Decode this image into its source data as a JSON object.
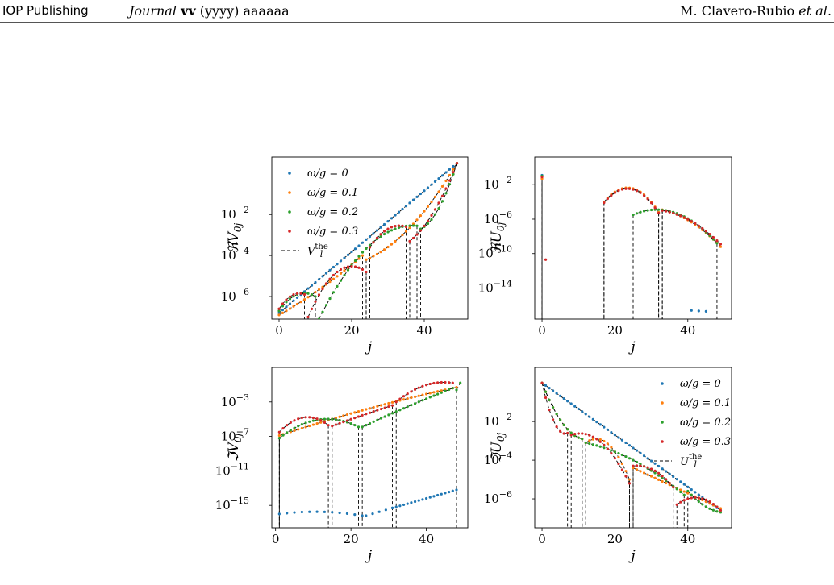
{
  "header": {
    "publisher": "IOP Publishing",
    "journal_name": "Journal",
    "journal_vol": "vv",
    "journal_rest": "(yyyy) aaaaaa",
    "authors": "M. Clavero-Rubio",
    "etal": "et al."
  },
  "colors": {
    "series": [
      "#1f77b4",
      "#ff7f0e",
      "#2ca02c",
      "#d62728"
    ],
    "theory": "#000000"
  },
  "chart_data": [
    {
      "type": "scatter",
      "ylabel": "ℜV0j",
      "xlabel": "j",
      "scale_y": "log",
      "xlim": [
        -2,
        52
      ],
      "ylim_exp": [
        -7.1,
        0.8
      ],
      "xticks": [
        0,
        20,
        40
      ],
      "yticks_exp": [
        -6,
        -4,
        -2
      ],
      "legend_placement": "top-left",
      "legend": [
        "ω/g = 0",
        "ω/g = 0.1",
        "ω/g = 0.2",
        "ω/g = 0.3",
        "V_l^the"
      ],
      "series": [
        {
          "name": "ω/g = 0",
          "segments": [
            {
              "x": [
                0,
                49
              ],
              "log10y": [
                -6.8,
                0.5
              ],
              "curve": 0
            }
          ]
        },
        {
          "name": "ω/g = 0.1",
          "segments": [
            {
              "x": [
                0,
                23
              ],
              "log10y": [
                -6.9,
                -4.0
              ],
              "curve": -0.15,
              "zero_end": true
            },
            {
              "x": [
                24,
                49
              ],
              "log10y": [
                -4.2,
                0.5
              ],
              "curve": -0.7,
              "zero_start": true
            }
          ]
        },
        {
          "name": "ω/g = 0.2",
          "segments": [
            {
              "x": [
                0,
                10
              ],
              "log10y": [
                -6.7,
                -6.0
              ],
              "curve": 0.45,
              "zero_end": true
            },
            {
              "x": [
                11,
                38
              ],
              "log10y": [
                -7.1,
                -2.55
              ],
              "curve": 1.25,
              "zero_start": true,
              "zero_end": true
            },
            {
              "x": [
                39,
                49
              ],
              "log10y": [
                -2.7,
                0.5
              ],
              "curve": -0.6,
              "zero_start": true
            }
          ]
        },
        {
          "name": "ω/g = 0.3",
          "segments": [
            {
              "x": [
                0,
                7
              ],
              "log10y": [
                -6.6,
                -5.9
              ],
              "curve": 0.3,
              "zero_end": true
            },
            {
              "x": [
                8,
                24
              ],
              "log10y": [
                -7.0,
                -4.8
              ],
              "curve": 1.1,
              "zero_start": true,
              "zero_end": true
            },
            {
              "x": [
                25,
                35
              ],
              "log10y": [
                -3.6,
                -2.6
              ],
              "curve": 0.4,
              "zero_start": true,
              "zero_end": true
            },
            {
              "x": [
                36,
                49
              ],
              "log10y": [
                -3.3,
                0.5
              ],
              "curve": -0.5,
              "zero_start": true
            }
          ]
        }
      ]
    },
    {
      "type": "scatter",
      "ylabel": "ℜU0j",
      "xlabel": "j",
      "scale_y": "log",
      "xlim": [
        -2,
        52
      ],
      "ylim_exp": [
        -17.6,
        1.2
      ],
      "xticks": [
        0,
        20,
        40
      ],
      "yticks_exp": [
        -14,
        -10,
        -6,
        -2
      ],
      "series": [
        {
          "name": "ω/g = 0",
          "segments": [
            {
              "x": [
                0,
                0
              ],
              "log10y": [
                -0.9,
                -0.9
              ],
              "curve": 0
            },
            {
              "x": [
                41,
                45
              ],
              "log10y": [
                -16.6,
                -16.7
              ],
              "curve": 0,
              "step": 2
            }
          ]
        },
        {
          "name": "ω/g = 0.1",
          "segments": [
            {
              "x": [
                0,
                0
              ],
              "log10y": [
                -1.3,
                -1.3
              ],
              "curve": 0,
              "zero_start": true
            },
            {
              "x": [
                17,
                32
              ],
              "log10y": [
                -4.0,
                -5.2
              ],
              "curve": 2.2,
              "zero_start": true,
              "zero_end": true
            },
            {
              "x": [
                33,
                49
              ],
              "log10y": [
                -4.9,
                -9.2
              ],
              "curve": 0.7,
              "zero_start": true
            }
          ]
        },
        {
          "name": "ω/g = 0.2",
          "segments": [
            {
              "x": [
                0,
                0
              ],
              "log10y": [
                -1.0,
                -1.0
              ],
              "curve": 0,
              "zero_start": true
            },
            {
              "x": [
                25,
                48
              ],
              "log10y": [
                -5.5,
                -8.8
              ],
              "curve": 1.9,
              "zero_start": true,
              "zero_end": true
            }
          ]
        },
        {
          "name": "ω/g = 0.3",
          "segments": [
            {
              "x": [
                0,
                0
              ],
              "log10y": [
                -1.1,
                -1.1
              ],
              "curve": 0,
              "zero_start": true
            },
            {
              "x": [
                1,
                1
              ],
              "log10y": [
                -10.7,
                -10.7
              ],
              "curve": 0
            },
            {
              "x": [
                17,
                32
              ],
              "log10y": [
                -4.1,
                -5.3
              ],
              "curve": 2.2,
              "zero_start": true,
              "zero_end": true
            },
            {
              "x": [
                33,
                49
              ],
              "log10y": [
                -5.0,
                -8.9
              ],
              "curve": 0.7,
              "zero_start": true
            }
          ]
        }
      ]
    },
    {
      "type": "scatter",
      "ylabel": "ℑV0j",
      "xlabel": "j",
      "scale_y": "log",
      "xlim": [
        -1,
        51
      ],
      "ylim_exp": [
        -17.6,
        1.0
      ],
      "xticks": [
        0,
        20,
        40
      ],
      "yticks_exp": [
        -15,
        -11,
        -7,
        -3
      ],
      "series": [
        {
          "name": "ω/g = 0",
          "segments": [
            {
              "x": [
                1,
                23
              ],
              "log10y": [
                -16.0,
                -16.2
              ],
              "curve": 0.35,
              "step": 2
            },
            {
              "x": [
                24,
                31
              ],
              "log10y": [
                -16.2,
                -15.3
              ],
              "curve": 0,
              "step": 2
            },
            {
              "x": [
                31,
                48
              ],
              "log10y": [
                -15.3,
                -13.2
              ],
              "curve": 0,
              "step": 1
            }
          ]
        },
        {
          "name": "ω/g = 0.1",
          "segments": [
            {
              "x": [
                1,
                48
              ],
              "log10y": [
                -6.9,
                -1.3
              ],
              "curve": 0.3,
              "zero_start": true
            }
          ]
        },
        {
          "name": "ω/g = 0.2",
          "segments": [
            {
              "x": [
                1,
                22
              ],
              "log10y": [
                -7.2,
                -5.9
              ],
              "curve": 1.5,
              "zero_start": true,
              "zero_end": true
            },
            {
              "x": [
                23,
                47
              ],
              "log10y": [
                -5.9,
                -1.4
              ],
              "curve": 0.1,
              "zero_start": true
            },
            {
              "x": [
                48,
                49
              ],
              "log10y": [
                -1.6,
                -0.8
              ],
              "curve": 0,
              "zero_start": true
            }
          ]
        },
        {
          "name": "ω/g = 0.3",
          "segments": [
            {
              "x": [
                1,
                14
              ],
              "log10y": [
                -6.5,
                -5.7
              ],
              "curve": 1.3,
              "zero_start": true,
              "zero_end": true
            },
            {
              "x": [
                15,
                31
              ],
              "log10y": [
                -5.8,
                -3.4
              ],
              "curve": 0.05,
              "zero_start": true,
              "zero_end": true
            },
            {
              "x": [
                32,
                47
              ],
              "log10y": [
                -3.0,
                -0.8
              ],
              "curve": 0.8,
              "zero_start": true
            }
          ]
        }
      ]
    },
    {
      "type": "scatter",
      "ylabel": "ℑU0j",
      "xlabel": "j",
      "scale_y": "log",
      "xlim": [
        -2,
        52
      ],
      "ylim_exp": [
        -7.5,
        0.8
      ],
      "xticks": [
        0,
        20,
        40
      ],
      "yticks_exp": [
        -6,
        -4,
        -2
      ],
      "legend_placement": "top-right",
      "legend": [
        "ω/g = 0",
        "ω/g = 0.1",
        "ω/g = 0.2",
        "ω/g = 0.3",
        "U_l^the"
      ],
      "series": [
        {
          "name": "ω/g = 0",
          "segments": [
            {
              "x": [
                0,
                49
              ],
              "log10y": [
                0.0,
                -6.6
              ],
              "curve": 0
            }
          ]
        },
        {
          "name": "ω/g = 0.1",
          "segments": [
            {
              "x": [
                0,
                11
              ],
              "log10y": [
                0.0,
                -2.9
              ],
              "curve": -0.6,
              "zero_end": true
            },
            {
              "x": [
                12,
                24
              ],
              "log10y": [
                -3.1,
                -5.0
              ],
              "curve": 0.9,
              "zero_start": true,
              "zero_end": true
            },
            {
              "x": [
                25,
                49
              ],
              "log10y": [
                -4.4,
                -6.5
              ],
              "curve": 0,
              "zero_start": true
            }
          ]
        },
        {
          "name": "ω/g = 0.2",
          "segments": [
            {
              "x": [
                0,
                11
              ],
              "log10y": [
                0.0,
                -2.9
              ],
              "curve": -0.6,
              "zero_end": true
            },
            {
              "x": [
                12,
                39
              ],
              "log10y": [
                -3.1,
                -5.8
              ],
              "curve": 0.4,
              "zero_start": true,
              "zero_end": true
            },
            {
              "x": [
                40,
                49
              ],
              "log10y": [
                -5.6,
                -6.7
              ],
              "curve": -0.2,
              "zero_start": true
            }
          ]
        },
        {
          "name": "ω/g = 0.3",
          "segments": [
            {
              "x": [
                0,
                7
              ],
              "log10y": [
                0.0,
                -2.6
              ],
              "curve": -0.8,
              "zero_end": true
            },
            {
              "x": [
                8,
                24
              ],
              "log10y": [
                -2.7,
                -5.2
              ],
              "curve": 0.9,
              "zero_start": true,
              "zero_end": true
            },
            {
              "x": [
                25,
                36
              ],
              "log10y": [
                -4.3,
                -5.4
              ],
              "curve": 0.35,
              "zero_start": true,
              "zero_end": true
            },
            {
              "x": [
                37,
                49
              ],
              "log10y": [
                -6.3,
                -6.6
              ],
              "curve": 0.5,
              "zero_start": true
            }
          ]
        }
      ]
    }
  ]
}
